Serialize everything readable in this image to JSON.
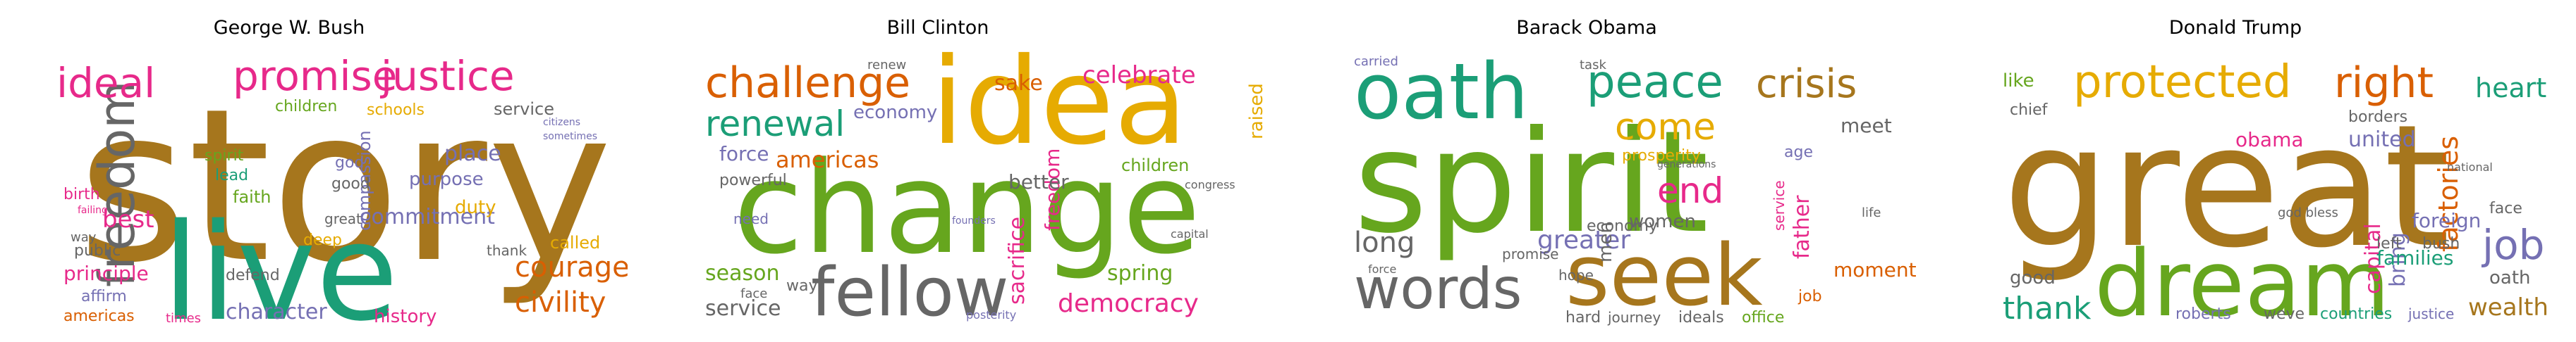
{
  "figure": {
    "panels": [
      {
        "title": "George W. Bush",
        "words": [
          {
            "text": "story",
            "color": "#a6761d"
          },
          {
            "text": "live",
            "color": "#1b9e77"
          },
          {
            "text": "freedom",
            "color": "#666666"
          },
          {
            "text": "promise",
            "color": "#e7298a"
          },
          {
            "text": "justice",
            "color": "#e7298a"
          },
          {
            "text": "ideal",
            "color": "#e7298a"
          },
          {
            "text": "courage",
            "color": "#d95f02"
          },
          {
            "text": "civility",
            "color": "#d95f02"
          },
          {
            "text": "character",
            "color": "#7570b3"
          },
          {
            "text": "commitment",
            "color": "#7570b3"
          },
          {
            "text": "principle",
            "color": "#e7298a"
          },
          {
            "text": "best",
            "color": "#e7298a"
          },
          {
            "text": "public",
            "color": "#666666"
          },
          {
            "text": "children",
            "color": "#66a61e"
          },
          {
            "text": "schools",
            "color": "#e6ab02"
          },
          {
            "text": "service",
            "color": "#666666"
          },
          {
            "text": "purpose",
            "color": "#7570b3"
          },
          {
            "text": "duty",
            "color": "#e6ab02"
          },
          {
            "text": "place",
            "color": "#7570b3"
          },
          {
            "text": "compassion",
            "color": "#7570b3"
          },
          {
            "text": "history",
            "color": "#e7298a"
          },
          {
            "text": "americas",
            "color": "#d95f02"
          },
          {
            "text": "times",
            "color": "#e7298a"
          },
          {
            "text": "defend",
            "color": "#666666"
          },
          {
            "text": "affirm",
            "color": "#7570b3"
          },
          {
            "text": "called",
            "color": "#e6ab02"
          },
          {
            "text": "thank",
            "color": "#666666"
          },
          {
            "text": "faith",
            "color": "#66a61e"
          },
          {
            "text": "spirit",
            "color": "#66a61e"
          },
          {
            "text": "lead",
            "color": "#1b9e77"
          },
          {
            "text": "good",
            "color": "#666666"
          },
          {
            "text": "god",
            "color": "#7570b3"
          },
          {
            "text": "deep",
            "color": "#e6ab02"
          },
          {
            "text": "birth",
            "color": "#e7298a"
          },
          {
            "text": "way",
            "color": "#666666"
          },
          {
            "text": "great",
            "color": "#666666"
          },
          {
            "text": "sometimes",
            "color": "#7570b3"
          },
          {
            "text": "citizens",
            "color": "#7570b3"
          },
          {
            "text": "failing",
            "color": "#e7298a"
          }
        ]
      },
      {
        "title": "Bill Clinton",
        "words": [
          {
            "text": "change",
            "color": "#66a61e"
          },
          {
            "text": "idea",
            "color": "#e6ab02"
          },
          {
            "text": "fellow",
            "color": "#666666"
          },
          {
            "text": "challenge",
            "color": "#d95f02"
          },
          {
            "text": "renewal",
            "color": "#1b9e77"
          },
          {
            "text": "celebrate",
            "color": "#e7298a"
          },
          {
            "text": "americas",
            "color": "#d95f02"
          },
          {
            "text": "democracy",
            "color": "#e7298a"
          },
          {
            "text": "season",
            "color": "#66a61e"
          },
          {
            "text": "spring",
            "color": "#66a61e"
          },
          {
            "text": "service",
            "color": "#666666"
          },
          {
            "text": "sacrifice",
            "color": "#e7298a"
          },
          {
            "text": "freedom",
            "color": "#e7298a"
          },
          {
            "text": "children",
            "color": "#66a61e"
          },
          {
            "text": "force",
            "color": "#7570b3"
          },
          {
            "text": "powerful",
            "color": "#666666"
          },
          {
            "text": "better",
            "color": "#666666"
          },
          {
            "text": "economy",
            "color": "#7570b3"
          },
          {
            "text": "need",
            "color": "#7570b3"
          },
          {
            "text": "sake",
            "color": "#d95f02"
          },
          {
            "text": "raised",
            "color": "#e6ab02"
          },
          {
            "text": "renew",
            "color": "#666666"
          },
          {
            "text": "face",
            "color": "#666666"
          },
          {
            "text": "way",
            "color": "#666666"
          },
          {
            "text": "capital",
            "color": "#666666"
          },
          {
            "text": "posterity",
            "color": "#7570b3"
          },
          {
            "text": "founders",
            "color": "#7570b3"
          },
          {
            "text": "congress",
            "color": "#666666"
          }
        ]
      },
      {
        "title": "Barack Obama",
        "words": [
          {
            "text": "spirit",
            "color": "#66a61e"
          },
          {
            "text": "oath",
            "color": "#1b9e77"
          },
          {
            "text": "seek",
            "color": "#a6761d"
          },
          {
            "text": "words",
            "color": "#666666"
          },
          {
            "text": "peace",
            "color": "#1b9e77"
          },
          {
            "text": "crisis",
            "color": "#a6761d"
          },
          {
            "text": "come",
            "color": "#e6ab02"
          },
          {
            "text": "end",
            "color": "#e7298a"
          },
          {
            "text": "long",
            "color": "#666666"
          },
          {
            "text": "greater",
            "color": "#7570b3"
          },
          {
            "text": "moment",
            "color": "#d95f02"
          },
          {
            "text": "prosperity",
            "color": "#e6ab02"
          },
          {
            "text": "economy",
            "color": "#666666"
          },
          {
            "text": "men",
            "color": "#666666"
          },
          {
            "text": "women",
            "color": "#666666"
          },
          {
            "text": "father",
            "color": "#e7298a"
          },
          {
            "text": "meet",
            "color": "#666666"
          },
          {
            "text": "age",
            "color": "#7570b3"
          },
          {
            "text": "hard",
            "color": "#666666"
          },
          {
            "text": "journey",
            "color": "#666666"
          },
          {
            "text": "ideals",
            "color": "#666666"
          },
          {
            "text": "office",
            "color": "#66a61e"
          },
          {
            "text": "job",
            "color": "#d95f02"
          },
          {
            "text": "hope",
            "color": "#666666"
          },
          {
            "text": "promise",
            "color": "#666666"
          },
          {
            "text": "carried",
            "color": "#7570b3"
          },
          {
            "text": "generations",
            "color": "#666666"
          },
          {
            "text": "task",
            "color": "#666666"
          },
          {
            "text": "service",
            "color": "#e7298a"
          },
          {
            "text": "life",
            "color": "#666666"
          },
          {
            "text": "force",
            "color": "#666666"
          }
        ]
      },
      {
        "title": "Donald Trump",
        "words": [
          {
            "text": "great",
            "color": "#a6761d"
          },
          {
            "text": "dream",
            "color": "#66a61e"
          },
          {
            "text": "protected",
            "color": "#e6ab02"
          },
          {
            "text": "right",
            "color": "#d95f02"
          },
          {
            "text": "job",
            "color": "#7570b3"
          },
          {
            "text": "heart",
            "color": "#1b9e77"
          },
          {
            "text": "thank",
            "color": "#1b9e77"
          },
          {
            "text": "wealth",
            "color": "#a6761d"
          },
          {
            "text": "factories",
            "color": "#d95f02"
          },
          {
            "text": "capital",
            "color": "#e7298a"
          },
          {
            "text": "bring",
            "color": "#7570b3"
          },
          {
            "text": "families",
            "color": "#1b9e77"
          },
          {
            "text": "united",
            "color": "#7570b3"
          },
          {
            "text": "foreign",
            "color": "#7570b3"
          },
          {
            "text": "obama",
            "color": "#e7298a"
          },
          {
            "text": "borders",
            "color": "#666666"
          },
          {
            "text": "left",
            "color": "#666666"
          },
          {
            "text": "bush",
            "color": "#666666"
          },
          {
            "text": "oath",
            "color": "#666666"
          },
          {
            "text": "face",
            "color": "#666666"
          },
          {
            "text": "good",
            "color": "#666666"
          },
          {
            "text": "countries",
            "color": "#1b9e77"
          },
          {
            "text": "justice",
            "color": "#7570b3"
          },
          {
            "text": "roberts",
            "color": "#7570b3"
          },
          {
            "text": "weve",
            "color": "#666666"
          },
          {
            "text": "like",
            "color": "#66a61e"
          },
          {
            "text": "chief",
            "color": "#666666"
          },
          {
            "text": "national",
            "color": "#666666"
          },
          {
            "text": "god bless",
            "color": "#666666"
          }
        ]
      }
    ]
  }
}
